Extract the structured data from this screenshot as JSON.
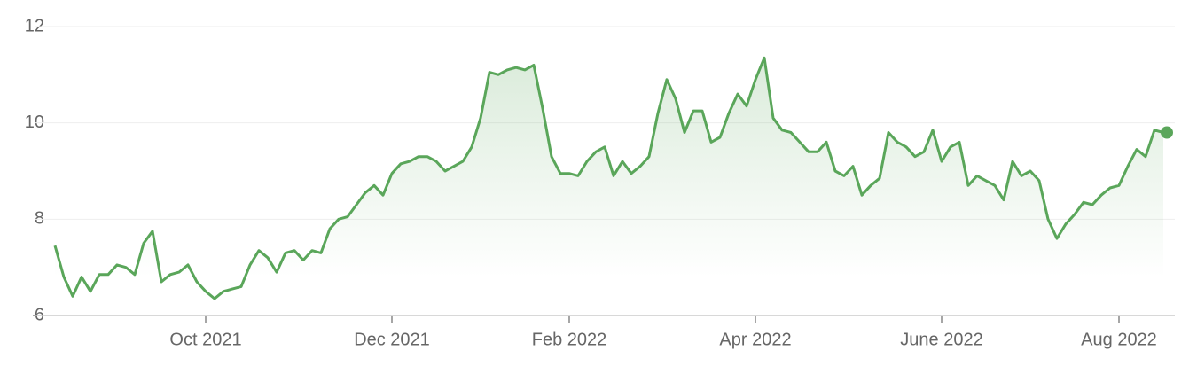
{
  "chart_data": {
    "type": "line",
    "categories": [
      null,
      null,
      null,
      null,
      null,
      null,
      null,
      null,
      null,
      null,
      null,
      null,
      null,
      null,
      null,
      null,
      null,
      "Oct 2021",
      null,
      null,
      null,
      null,
      null,
      null,
      null,
      null,
      null,
      null,
      null,
      null,
      null,
      null,
      null,
      null,
      null,
      null,
      null,
      null,
      "Dec 2021",
      null,
      null,
      null,
      null,
      null,
      null,
      null,
      null,
      null,
      null,
      null,
      null,
      null,
      null,
      null,
      null,
      null,
      null,
      null,
      "Feb 2022",
      null,
      null,
      null,
      null,
      null,
      null,
      null,
      null,
      null,
      null,
      null,
      null,
      null,
      null,
      null,
      null,
      null,
      null,
      null,
      null,
      "Apr 2022",
      null,
      null,
      null,
      null,
      null,
      null,
      null,
      null,
      null,
      null,
      null,
      null,
      null,
      null,
      null,
      null,
      null,
      null,
      null,
      null,
      "June 2022",
      null,
      null,
      null,
      null,
      null,
      null,
      null,
      null,
      null,
      null,
      null,
      null,
      null,
      null,
      null,
      null,
      null,
      null,
      null,
      "Aug 2022",
      null,
      null,
      null,
      null,
      null
    ],
    "values": [
      7.45,
      6.8,
      6.4,
      6.8,
      6.5,
      6.85,
      6.85,
      7.05,
      7.0,
      6.85,
      7.5,
      7.75,
      6.7,
      6.85,
      6.9,
      7.05,
      6.7,
      6.5,
      6.35,
      6.5,
      6.55,
      6.6,
      7.05,
      7.35,
      7.2,
      6.9,
      7.3,
      7.35,
      7.15,
      7.35,
      7.3,
      7.8,
      8.0,
      8.05,
      8.3,
      8.55,
      8.7,
      8.5,
      8.95,
      9.15,
      9.2,
      9.3,
      9.3,
      9.2,
      9.0,
      9.1,
      9.2,
      9.5,
      10.1,
      11.05,
      11.0,
      11.1,
      11.15,
      11.1,
      11.2,
      10.3,
      9.3,
      8.95,
      8.95,
      8.9,
      9.2,
      9.4,
      9.5,
      8.9,
      9.2,
      8.95,
      9.1,
      9.3,
      10.2,
      10.9,
      10.5,
      9.8,
      10.25,
      10.25,
      9.6,
      9.7,
      10.2,
      10.6,
      10.35,
      10.9,
      11.35,
      10.1,
      9.85,
      9.8,
      9.6,
      9.4,
      9.4,
      9.6,
      9.0,
      8.9,
      9.1,
      8.5,
      8.7,
      8.85,
      9.8,
      9.6,
      9.5,
      9.3,
      9.4,
      9.85,
      9.2,
      9.5,
      9.6,
      8.7,
      8.9,
      8.8,
      8.7,
      8.4,
      9.2,
      8.9,
      9.0,
      8.8,
      8.0,
      7.6,
      7.9,
      8.1,
      8.35,
      8.3,
      8.5,
      8.65,
      8.7,
      9.1,
      9.45,
      9.3,
      9.85,
      9.8
    ],
    "color": "#5aa65a",
    "ylim": [
      6,
      12
    ],
    "yticks": [
      6,
      8,
      10,
      12
    ],
    "grid": true
  }
}
